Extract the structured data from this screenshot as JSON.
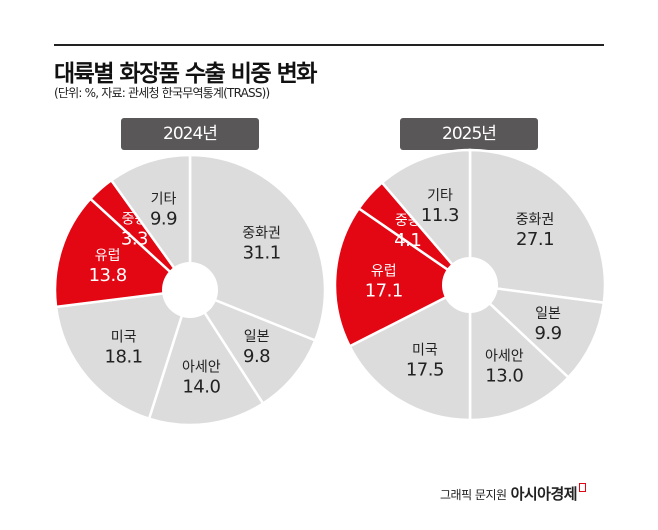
{
  "title": "대륙별 화장품 수출 비중 변화",
  "subtitle": "(단위: %, 자료: 관세청 한국무역통계(TRASS))",
  "credit": "그래픽 문지원",
  "brand": "아시아경제",
  "colors": {
    "gray": "#dcdcdc",
    "red": "#e30613",
    "highlight_categories": [
      "유럽",
      "중동"
    ]
  },
  "chart_data": [
    {
      "type": "pie",
      "title": "2024년",
      "unit": "%",
      "categories": [
        "중화권",
        "일본",
        "아세안",
        "미국",
        "유럽",
        "중동",
        "기타"
      ],
      "values": [
        31.1,
        9.8,
        14.0,
        18.1,
        13.8,
        3.3,
        9.9
      ]
    },
    {
      "type": "pie",
      "title": "2025년",
      "unit": "%",
      "categories": [
        "중화권",
        "일본",
        "아세안",
        "미국",
        "유럽",
        "중동",
        "기타"
      ],
      "values": [
        27.1,
        9.9,
        13.0,
        17.5,
        17.1,
        4.1,
        11.3
      ]
    }
  ]
}
